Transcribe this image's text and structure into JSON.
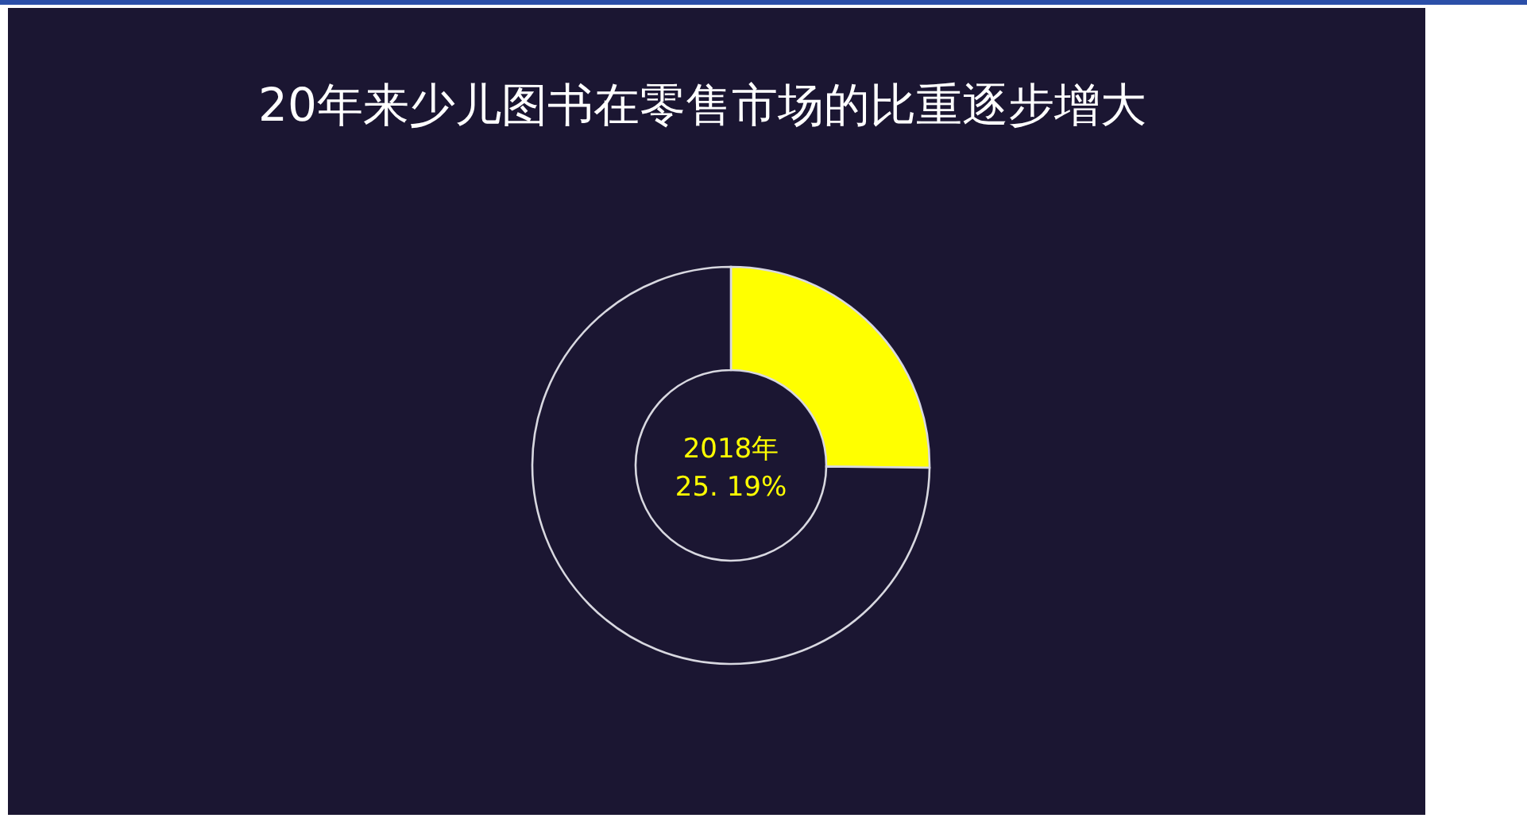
{
  "chart_data": {
    "type": "donut",
    "title": "20年来少儿图书在零售市场的比重逐步增大",
    "categories": [
      null,
      null
    ],
    "values": [
      25.19,
      74.81
    ],
    "colors": [
      "#ffff00",
      "#1b1632"
    ],
    "annotations": [
      "2018年",
      "25. 19%"
    ]
  }
}
